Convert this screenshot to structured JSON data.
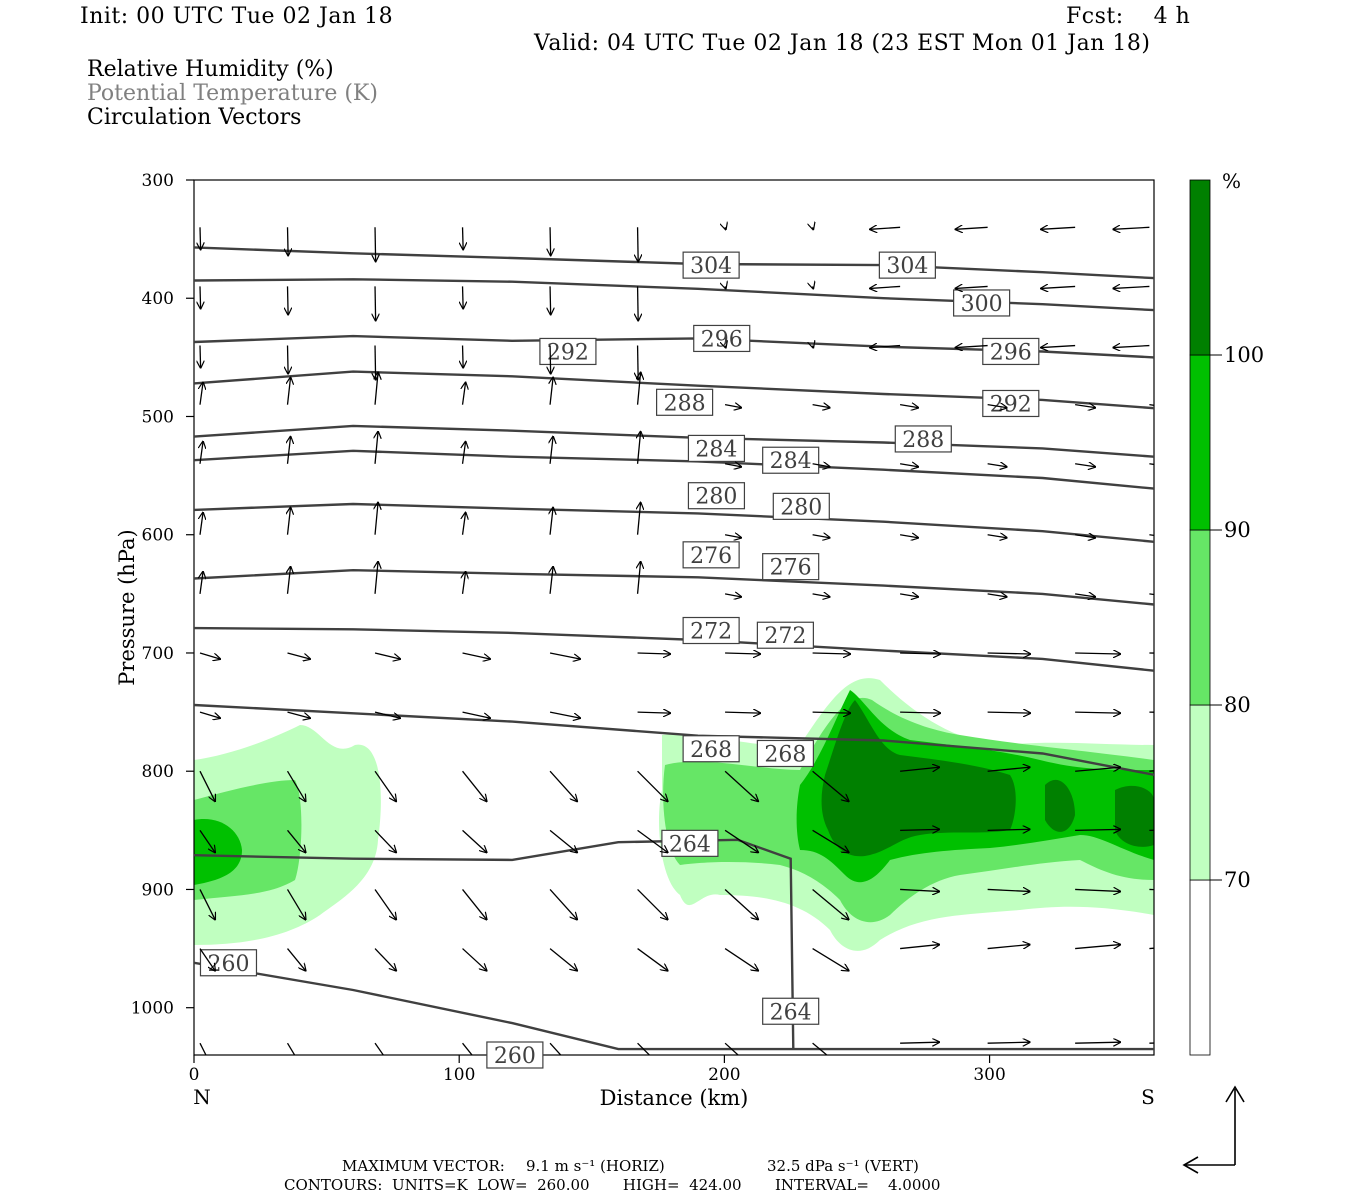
{
  "header": {
    "init": "Init: 00 UTC Tue 02 Jan 18",
    "fcst": "Fcst:    4 h",
    "valid": "Valid: 04 UTC Tue 02 Jan 18 (23 EST Mon 01 Jan 18)"
  },
  "legend": {
    "rh": "Relative Humidity (%)",
    "theta": "Potential Temperature (K)",
    "vectors": "Circulation Vectors"
  },
  "colors": {
    "rh_70": "#c0ffc0",
    "rh_80": "#66e666",
    "rh_90": "#00c000",
    "rh_100": "#008000",
    "contour": "#404040",
    "label_gray": "#808080"
  },
  "footer": {
    "max_vector_label": "MAXIMUM VECTOR:",
    "max_vector_horiz": "9.1 m s⁻¹ (HORIZ)",
    "max_vector_vert": "32.5 dPa s⁻¹ (VERT)",
    "contours": "CONTOURS:  UNITS=K  LOW=  260.00       HIGH=  424.00       INTERVAL=    4.0000"
  },
  "chart_data": {
    "type": "cross-section",
    "xlabel": "Distance (km)",
    "ylabel": "Pressure (hPa)",
    "xlim": [
      0,
      362
    ],
    "ylim": [
      1040,
      300
    ],
    "x_ticks": [
      0,
      100,
      200,
      300
    ],
    "y_ticks": [
      300,
      400,
      500,
      600,
      700,
      800,
      900,
      1000
    ],
    "x_end_labels": {
      "left": "N",
      "right": "S"
    },
    "colorbar": {
      "unit": "%",
      "levels": [
        70,
        80,
        90,
        100
      ],
      "colors": [
        "#ffffff",
        "#c0ffc0",
        "#66e666",
        "#00c000",
        "#008000"
      ]
    },
    "theta_contours": [
      {
        "value": 304,
        "label": "304",
        "points": [
          [
            0,
            357
          ],
          [
            60,
            362
          ],
          [
            120,
            366
          ],
          [
            190,
            371
          ],
          [
            260,
            372
          ],
          [
            320,
            378
          ],
          [
            362,
            383
          ]
        ],
        "labels_at": [
          [
            195,
            372
          ],
          [
            269,
            372
          ]
        ]
      },
      {
        "value": 300,
        "label": "300",
        "points": [
          [
            0,
            385
          ],
          [
            60,
            384
          ],
          [
            120,
            386
          ],
          [
            190,
            392
          ],
          [
            260,
            400
          ],
          [
            320,
            405
          ],
          [
            362,
            410
          ]
        ],
        "labels_at": [
          [
            297,
            404
          ]
        ]
      },
      {
        "value": 296,
        "label": "296",
        "points": [
          [
            0,
            437
          ],
          [
            60,
            432
          ],
          [
            120,
            436
          ],
          [
            190,
            434
          ],
          [
            260,
            441
          ],
          [
            320,
            445
          ],
          [
            362,
            450
          ]
        ],
        "labels_at": [
          [
            199,
            434
          ],
          [
            308,
            445
          ]
        ]
      },
      {
        "value": 292,
        "label": "292",
        "points": [
          [
            0,
            472
          ],
          [
            60,
            462
          ],
          [
            120,
            466
          ],
          [
            190,
            474
          ],
          [
            260,
            481
          ],
          [
            320,
            486
          ],
          [
            362,
            493
          ]
        ],
        "labels_at": [
          [
            141,
            445
          ],
          [
            308,
            489
          ]
        ]
      },
      {
        "value": 288,
        "label": "288",
        "points": [
          [
            0,
            517
          ],
          [
            60,
            508
          ],
          [
            120,
            512
          ],
          [
            190,
            518
          ],
          [
            260,
            522
          ],
          [
            320,
            527
          ],
          [
            362,
            534
          ]
        ],
        "labels_at": [
          [
            185,
            488
          ],
          [
            275,
            519
          ]
        ]
      },
      {
        "value": 284,
        "label": "284",
        "points": [
          [
            0,
            537
          ],
          [
            60,
            529
          ],
          [
            120,
            534
          ],
          [
            190,
            538
          ],
          [
            260,
            545
          ],
          [
            320,
            552
          ],
          [
            362,
            561
          ]
        ],
        "labels_at": [
          [
            197,
            527
          ],
          [
            225,
            537
          ]
        ]
      },
      {
        "value": 280,
        "label": "280",
        "points": [
          [
            0,
            579
          ],
          [
            60,
            574
          ],
          [
            120,
            578
          ],
          [
            190,
            582
          ],
          [
            260,
            589
          ],
          [
            320,
            597
          ],
          [
            362,
            606
          ]
        ],
        "labels_at": [
          [
            197,
            567
          ],
          [
            229,
            576
          ]
        ]
      },
      {
        "value": 276,
        "label": "276",
        "points": [
          [
            0,
            637
          ],
          [
            60,
            630
          ],
          [
            120,
            633
          ],
          [
            190,
            636
          ],
          [
            260,
            643
          ],
          [
            320,
            650
          ],
          [
            362,
            659
          ]
        ],
        "labels_at": [
          [
            195,
            617
          ],
          [
            225,
            627
          ]
        ]
      },
      {
        "value": 272,
        "label": "272",
        "points": [
          [
            0,
            679
          ],
          [
            60,
            680
          ],
          [
            120,
            683
          ],
          [
            190,
            689
          ],
          [
            260,
            698
          ],
          [
            320,
            705
          ],
          [
            362,
            715
          ]
        ],
        "labels_at": [
          [
            195,
            681
          ],
          [
            223,
            685
          ]
        ]
      },
      {
        "value": 268,
        "label": "268",
        "points": [
          [
            0,
            744
          ],
          [
            60,
            751
          ],
          [
            120,
            758
          ],
          [
            190,
            770
          ],
          [
            260,
            774
          ],
          [
            320,
            785
          ],
          [
            362,
            803
          ]
        ],
        "labels_at": [
          [
            195,
            781
          ],
          [
            223,
            785
          ]
        ]
      },
      {
        "value": 264,
        "label": "264",
        "points": [
          [
            0,
            871
          ],
          [
            60,
            874
          ],
          [
            120,
            875
          ],
          [
            160,
            860
          ],
          [
            205,
            858
          ],
          [
            225,
            874
          ],
          [
            226,
            1035
          ]
        ],
        "labels_at": [
          [
            187,
            861
          ],
          [
            225,
            1003
          ]
        ]
      },
      {
        "value": 260,
        "label": "260",
        "points": [
          [
            0,
            962
          ],
          [
            60,
            985
          ],
          [
            120,
            1013
          ],
          [
            160,
            1035
          ],
          [
            362,
            1035
          ]
        ],
        "labels_at": [
          [
            13,
            962
          ],
          [
            121,
            1040
          ]
        ]
      }
    ],
    "rh_regions": [
      {
        "level": 70,
        "description": "moist layer 760-1000 hPa near N end and 200-362 km"
      },
      {
        "level": 80,
        "description": "cores near 850 hPa"
      },
      {
        "level": 90,
        "description": "cores near 850 hPa"
      },
      {
        "level": 100,
        "description": "core 230-330 km, 780-880 hPa"
      }
    ],
    "max_vector": {
      "horiz_m_s": 9.1,
      "vert_dPa_s": 32.5
    }
  }
}
